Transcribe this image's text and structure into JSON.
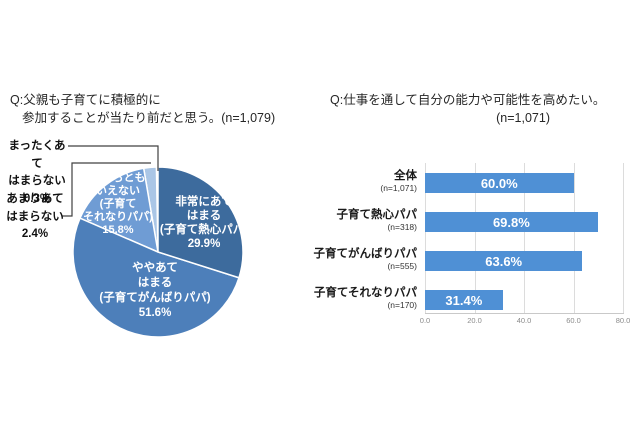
{
  "page": {
    "background": "#ffffff"
  },
  "pie_section": {
    "title_line1": "Q:父親も子育てに積極的に",
    "title_line2": "参加することが当たり前だと思う。(n=1,079)"
  },
  "bar_section": {
    "title_line1": "Q:仕事を通して自分の能力や可能性を高めたい。",
    "title_line2": "(n=1,071)"
  },
  "chart_data": [
    {
      "type": "pie",
      "title": "Q:父親も子育てに積極的に参加することが当たり前だと思う。(n=1,079)",
      "n": "n=1,079",
      "labels": [
        "非常にあてはまる(子育て熱心パパ)",
        "ややあてはまる(子育てがんばりパパ)",
        "どちらともいえない(子育てそれなりパパ)",
        "あまりあてはまらない",
        "まったくあてはまらない"
      ],
      "values": [
        29.9,
        51.6,
        15.8,
        2.4,
        0.3
      ],
      "colors": [
        "#3d6b9d",
        "#4d7fba",
        "#6f9cd4",
        "#aac6e6",
        "#dce6f3"
      ],
      "start_angle_deg": 0,
      "direction": "clockwise",
      "slice_label_display": [
        "非常にあて\nはまる\n(子育て熱心パパ)\n29.9%",
        "ややあて\nはまる\n(子育てがんばりパパ)\n51.6%",
        "どちらとも\nいえない\n(子育て\nそれなりパパ)\n15.8%"
      ],
      "callout_labels": [
        "まったくあて\nはまらない\n0.3%",
        "あまりあて\nはまらない\n2.4%"
      ]
    },
    {
      "type": "bar",
      "orientation": "horizontal",
      "title": "Q:仕事を通して自分の能力や可能性を高めたい。(n=1,071)",
      "n": "n=1,071",
      "categories": [
        "全体",
        "子育て熱心パパ",
        "子育てがんばりパパ",
        "子育てそれなりパパ"
      ],
      "category_n": [
        "(n=1,071)",
        "(n=318)",
        "(n=555)",
        "(n=170)"
      ],
      "values": [
        60.0,
        69.8,
        63.6,
        31.4
      ],
      "value_labels": [
        "60.0%",
        "69.8%",
        "63.6%",
        "31.4%"
      ],
      "xlim": [
        0,
        80
      ],
      "xticks": [
        0,
        20,
        40,
        60,
        80
      ],
      "xtick_labels": [
        "0.0",
        "20.0",
        "40.0",
        "60.0",
        "80.0"
      ],
      "bar_color": "#4f90d5",
      "grid": true,
      "legend": "none"
    }
  ]
}
